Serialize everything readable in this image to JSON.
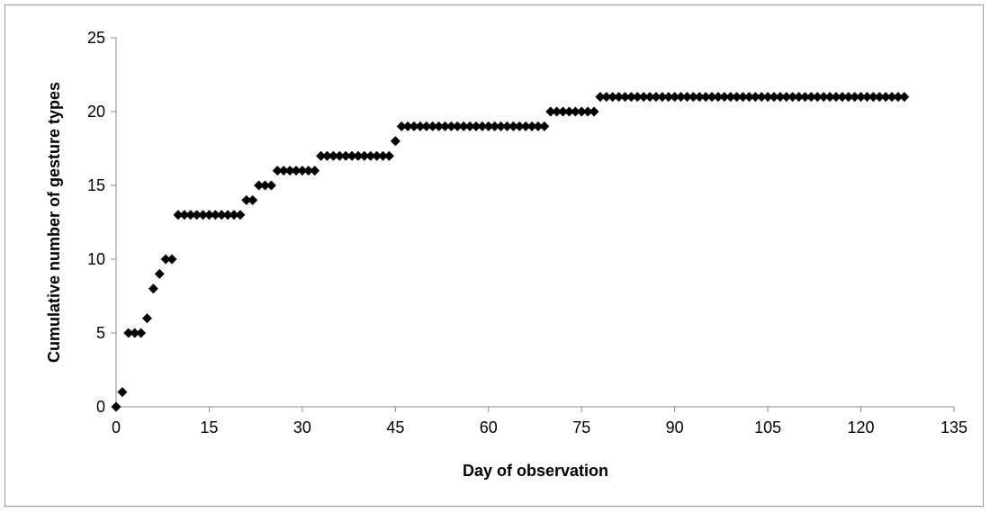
{
  "chart_data": {
    "type": "scatter",
    "title": "",
    "xlabel": "Day of observation",
    "ylabel": "Cumulative number of gesture types",
    "xlim": [
      0,
      135
    ],
    "ylim": [
      0,
      25
    ],
    "xticks": [
      0,
      15,
      30,
      45,
      60,
      75,
      90,
      105,
      120,
      135
    ],
    "yticks": [
      0,
      5,
      10,
      15,
      20,
      25
    ],
    "grid": false,
    "legend": "none",
    "marker": "diamond",
    "marker_color": "#000000",
    "series": [
      {
        "x": [
          0,
          1,
          2,
          3,
          4,
          5,
          6,
          7,
          8,
          9,
          10,
          11,
          12,
          13,
          14,
          15,
          16,
          17,
          18,
          19,
          20,
          21,
          22,
          23,
          24,
          25,
          26,
          27,
          28,
          29,
          30,
          31,
          32,
          33,
          34,
          35,
          36,
          37,
          38,
          39,
          40,
          41,
          42,
          43,
          44,
          45,
          46,
          47,
          48,
          49,
          50,
          51,
          52,
          53,
          54,
          55,
          56,
          57,
          58,
          59,
          60,
          61,
          62,
          63,
          64,
          65,
          66,
          67,
          68,
          69,
          70,
          71,
          72,
          73,
          74,
          75,
          76,
          77,
          78,
          79,
          80,
          81,
          82,
          83,
          84,
          85,
          86,
          87,
          88,
          89,
          90,
          91,
          92,
          93,
          94,
          95,
          96,
          97,
          98,
          99,
          100,
          101,
          102,
          103,
          104,
          105,
          106,
          107,
          108,
          109,
          110,
          111,
          112,
          113,
          114,
          115,
          116,
          117,
          118,
          119,
          120,
          121,
          122,
          123,
          124,
          125,
          126,
          127
        ],
        "y": [
          0,
          1,
          5,
          5,
          5,
          6,
          8,
          9,
          10,
          10,
          13,
          13,
          13,
          13,
          13,
          13,
          13,
          13,
          13,
          13,
          13,
          14,
          14,
          15,
          15,
          15,
          16,
          16,
          16,
          16,
          16,
          16,
          16,
          17,
          17,
          17,
          17,
          17,
          17,
          17,
          17,
          17,
          17,
          17,
          17,
          18,
          19,
          19,
          19,
          19,
          19,
          19,
          19,
          19,
          19,
          19,
          19,
          19,
          19,
          19,
          19,
          19,
          19,
          19,
          19,
          19,
          19,
          19,
          19,
          19,
          20,
          20,
          20,
          20,
          20,
          20,
          20,
          20,
          21,
          21,
          21,
          21,
          21,
          21,
          21,
          21,
          21,
          21,
          21,
          21,
          21,
          21,
          21,
          21,
          21,
          21,
          21,
          21,
          21,
          21,
          21,
          21,
          21,
          21,
          21,
          21,
          21,
          21,
          21,
          21,
          21,
          21,
          21,
          21,
          21,
          21,
          21,
          21,
          21,
          21,
          21,
          21,
          21,
          21,
          21,
          21,
          21,
          21
        ]
      }
    ]
  }
}
